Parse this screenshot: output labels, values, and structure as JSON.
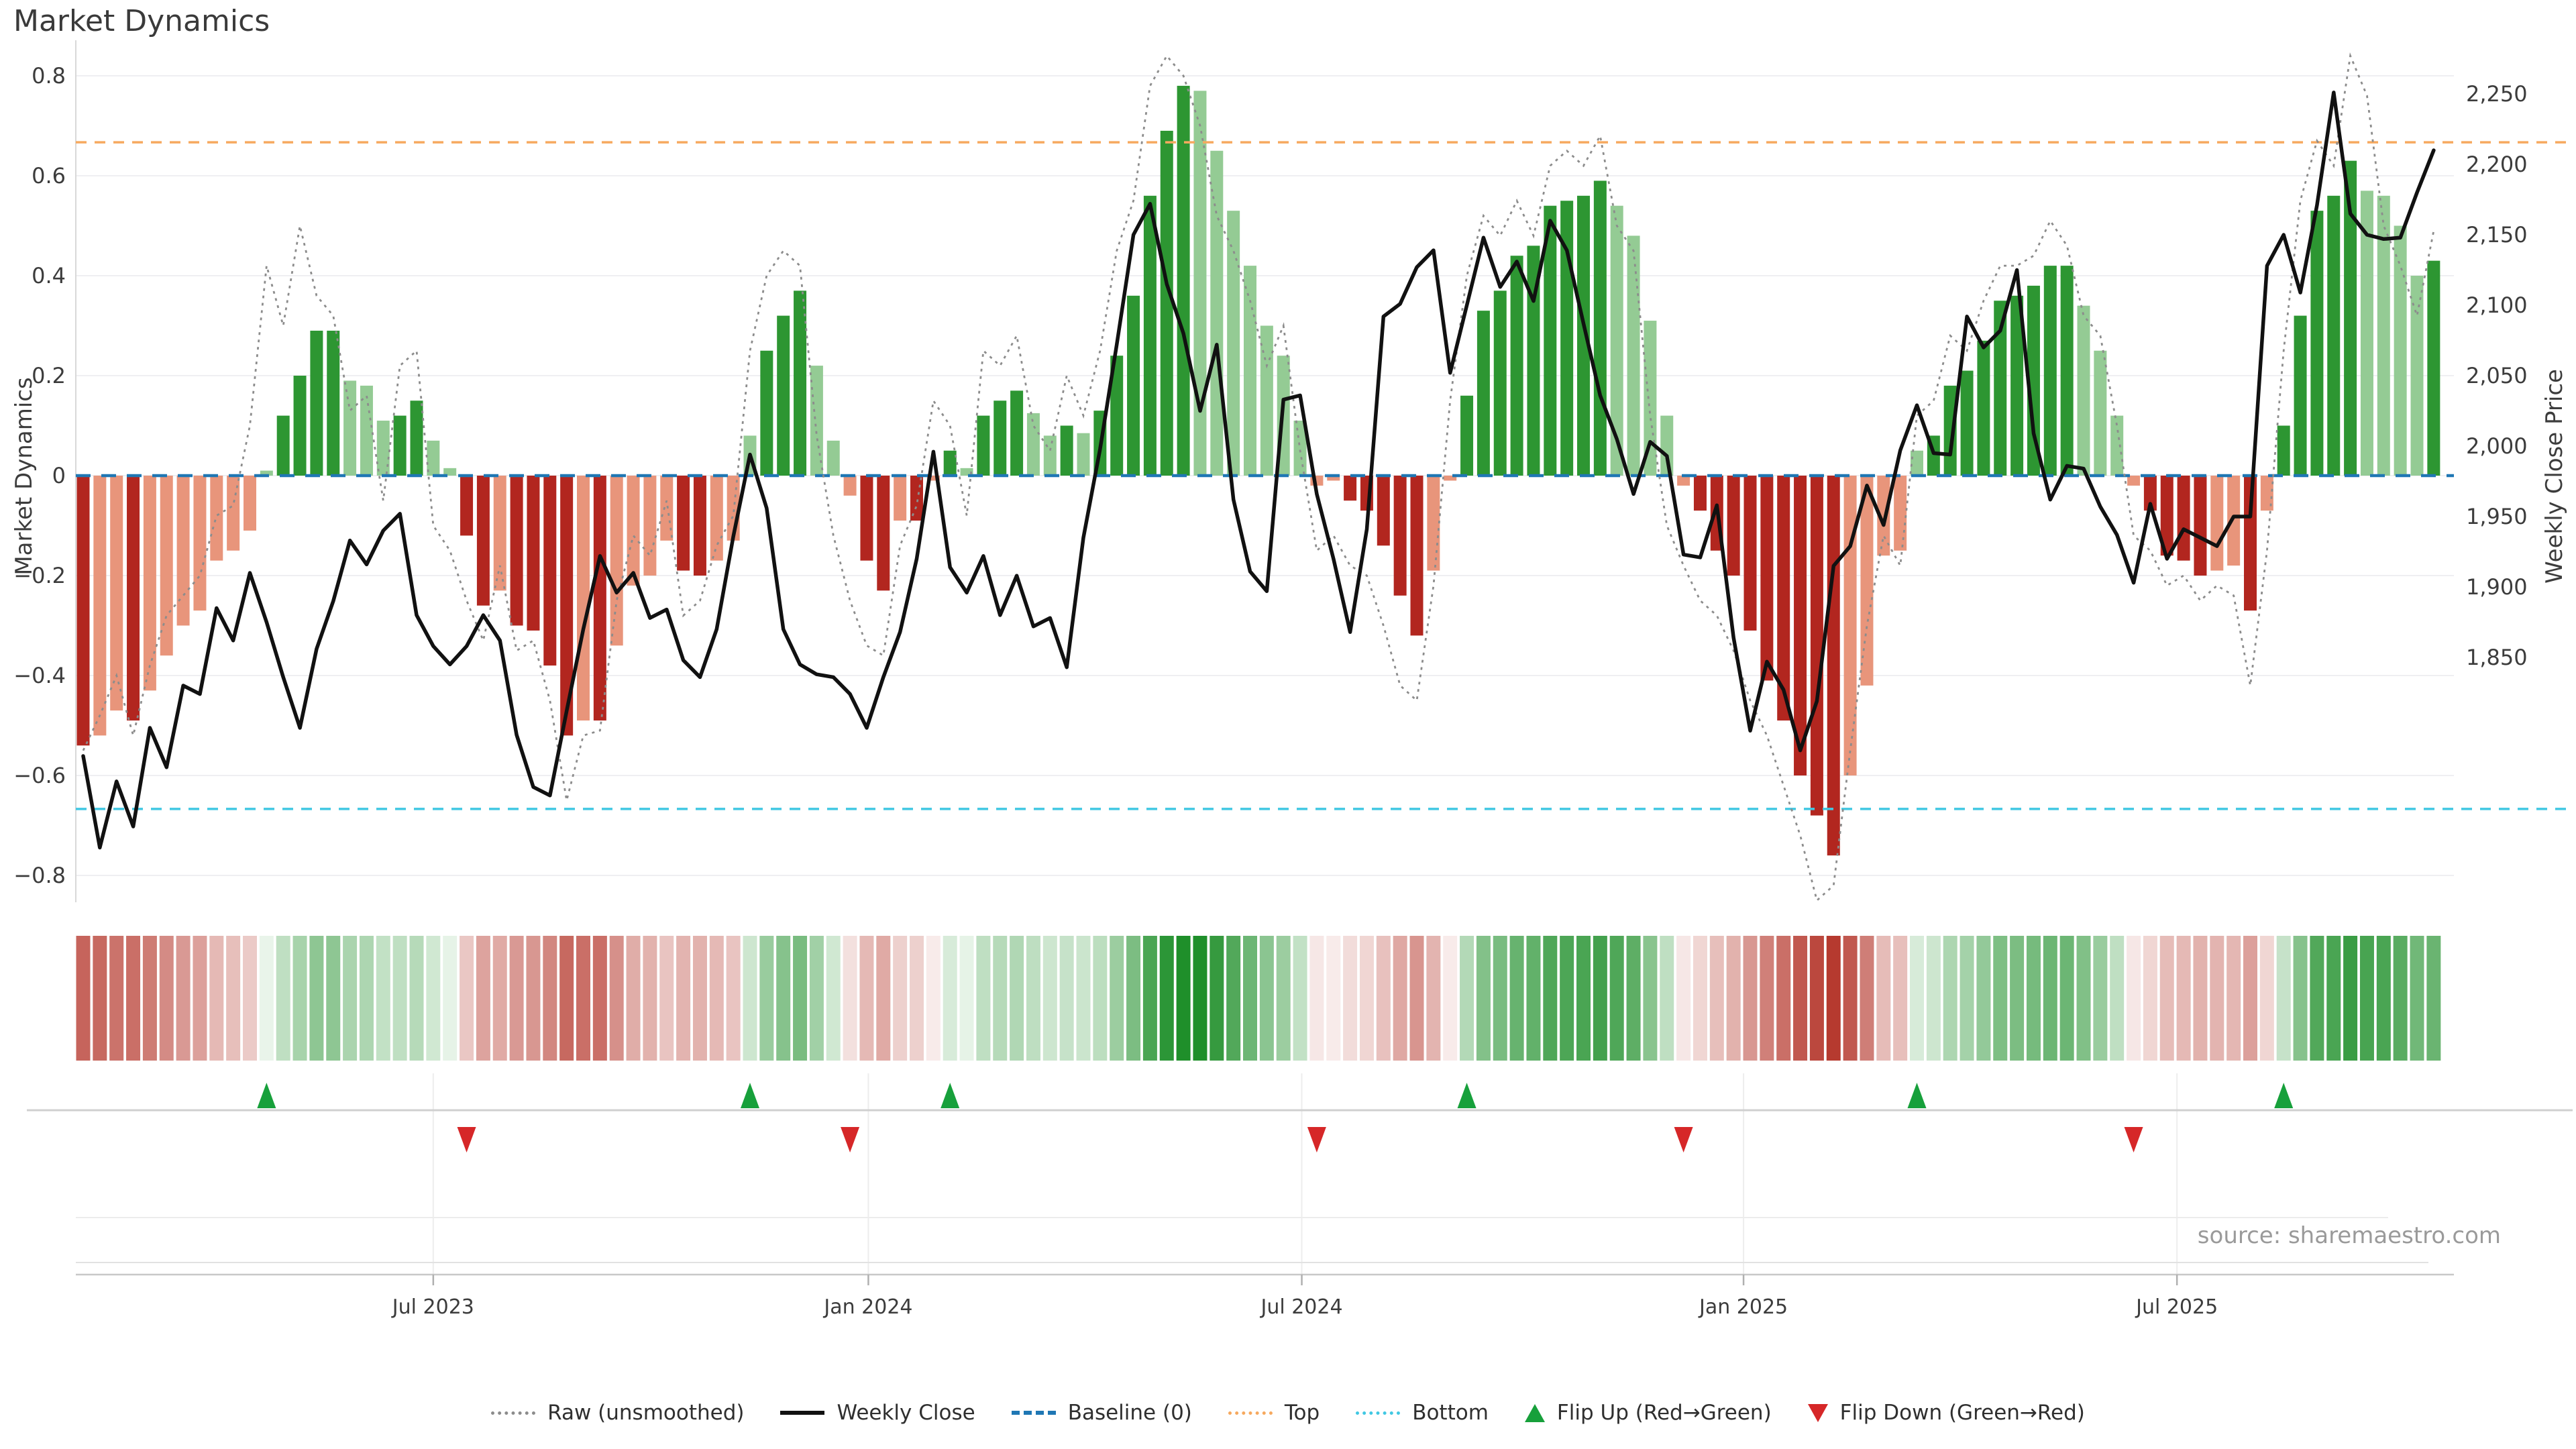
{
  "title": "Market Dynamics",
  "source": "source: sharemaestro.com",
  "axes": {
    "left_label": "Market Dynamics",
    "right_label": "Weekly Close Price",
    "left_ticks": [
      {
        "label": "0.8",
        "value": 0.8
      },
      {
        "label": "0.6",
        "value": 0.6
      },
      {
        "label": "0.4",
        "value": 0.4
      },
      {
        "label": "0.2",
        "value": 0.2
      },
      {
        "label": "0",
        "value": 0.0
      },
      {
        "label": "−0.2",
        "value": -0.2
      },
      {
        "label": "−0.4",
        "value": -0.4
      },
      {
        "label": "−0.6",
        "value": -0.6
      },
      {
        "label": "−0.8",
        "value": -0.8
      }
    ],
    "right_ticks": [
      {
        "label": "2,250",
        "value": 2250
      },
      {
        "label": "2,200",
        "value": 2200
      },
      {
        "label": "2,150",
        "value": 2150
      },
      {
        "label": "2,100",
        "value": 2100
      },
      {
        "label": "2,050",
        "value": 2050
      },
      {
        "label": "2,000",
        "value": 2000
      },
      {
        "label": "1,950",
        "value": 1950
      },
      {
        "label": "1,900",
        "value": 1900
      },
      {
        "label": "1,850",
        "value": 1850
      }
    ],
    "x_ticks": [
      {
        "label": "Jul 2023",
        "week": 21.0
      },
      {
        "label": "Jan 2024",
        "week": 47.1
      },
      {
        "label": "Jul 2024",
        "week": 73.1
      },
      {
        "label": "Jan 2025",
        "week": 99.6
      },
      {
        "label": "Jul 2025",
        "week": 125.6
      }
    ]
  },
  "legend": {
    "items": [
      {
        "label": "Raw (unsmoothed)",
        "type": "dotted-line",
        "color": "#8c8c8c"
      },
      {
        "label": "Weekly Close",
        "type": "solid-line",
        "color": "#111111"
      },
      {
        "label": "Baseline (0)",
        "type": "dashed-line",
        "color": "#1f77b4"
      },
      {
        "label": "Top",
        "type": "dotted-line",
        "color": "#f6a95f"
      },
      {
        "label": "Bottom",
        "type": "dotted-line",
        "color": "#41c8e3"
      },
      {
        "label": "Flip Up (Red→Green)",
        "type": "triangle-up",
        "color": "#17a03b"
      },
      {
        "label": "Flip Down (Green→Red)",
        "type": "triangle-down",
        "color": "#d62728"
      }
    ]
  },
  "colors": {
    "green_dark": "#2d9632",
    "green_light": "#94cb94",
    "red_dark": "#b2261f",
    "red_light": "#e8957b",
    "close": "#111111",
    "raw": "#8c8c8c",
    "baseline": "#1f77b4",
    "top": "#f6a95f",
    "bottom": "#41c8e3",
    "flip_up": "#17a03b",
    "flip_down": "#d62728",
    "grid": "#efeff2",
    "spine": "#d8d8d8",
    "axis_text": "#3c3c3c",
    "heat_pos": "#1f8f2a",
    "heat_neg": "#b63a2f"
  },
  "chart_data": {
    "type": "combo",
    "x_unit": "weeks",
    "n_points": 142,
    "left_ylim": [
      -0.8,
      0.8
    ],
    "right_tick_range": [
      1850,
      2250
    ],
    "baseline": 0,
    "top_threshold": 0.667,
    "bottom_threshold": -0.667,
    "flip_up_weeks": [
      11,
      40,
      52,
      83,
      110,
      132
    ],
    "flip_down_weeks": [
      23,
      46,
      74,
      96,
      123
    ],
    "heatmap_source": "dynamics",
    "series": [
      {
        "name": "Market Dynamics",
        "type": "bar",
        "axis": "left",
        "values": [
          -0.54,
          -0.52,
          -0.47,
          -0.49,
          -0.43,
          -0.36,
          -0.3,
          -0.27,
          -0.17,
          -0.15,
          -0.11,
          0.01,
          0.12,
          0.2,
          0.29,
          0.29,
          0.19,
          0.18,
          0.11,
          0.12,
          0.15,
          0.07,
          0.015,
          -0.12,
          -0.26,
          -0.23,
          -0.3,
          -0.31,
          -0.38,
          -0.52,
          -0.49,
          -0.49,
          -0.34,
          -0.22,
          -0.2,
          -0.13,
          -0.19,
          -0.2,
          -0.17,
          -0.13,
          0.08,
          0.25,
          0.32,
          0.37,
          0.22,
          0.07,
          -0.04,
          -0.17,
          -0.23,
          -0.09,
          -0.09,
          -0.01,
          0.05,
          0.015,
          0.12,
          0.15,
          0.17,
          0.125,
          0.08,
          0.1,
          0.085,
          0.13,
          0.24,
          0.36,
          0.56,
          0.69,
          0.78,
          0.77,
          0.65,
          0.53,
          0.42,
          0.3,
          0.24,
          0.11,
          -0.02,
          -0.01,
          -0.05,
          -0.07,
          -0.14,
          -0.24,
          -0.32,
          -0.19,
          -0.01,
          0.16,
          0.33,
          0.37,
          0.44,
          0.46,
          0.54,
          0.55,
          0.56,
          0.59,
          0.54,
          0.48,
          0.31,
          0.12,
          -0.02,
          -0.07,
          -0.15,
          -0.2,
          -0.31,
          -0.41,
          -0.49,
          -0.6,
          -0.68,
          -0.76,
          -0.6,
          -0.42,
          -0.16,
          -0.15,
          0.05,
          0.08,
          0.18,
          0.21,
          0.27,
          0.35,
          0.36,
          0.38,
          0.42,
          0.42,
          0.34,
          0.25,
          0.12,
          -0.02,
          -0.07,
          -0.16,
          -0.17,
          -0.2,
          -0.19,
          -0.18,
          -0.27,
          -0.07,
          0.1,
          0.32,
          0.53,
          0.56,
          0.63,
          0.57,
          0.56,
          0.5,
          0.4,
          0.43
        ]
      },
      {
        "name": "Raw (unsmoothed)",
        "type": "line",
        "style": "dotted",
        "axis": "left",
        "values": [
          -0.55,
          -0.48,
          -0.4,
          -0.52,
          -0.38,
          -0.28,
          -0.24,
          -0.2,
          -0.08,
          -0.06,
          0.1,
          0.42,
          0.3,
          0.5,
          0.36,
          0.32,
          0.13,
          0.16,
          -0.05,
          0.22,
          0.25,
          -0.1,
          -0.15,
          -0.25,
          -0.33,
          -0.18,
          -0.35,
          -0.33,
          -0.45,
          -0.65,
          -0.52,
          -0.51,
          -0.25,
          -0.12,
          -0.16,
          -0.05,
          -0.28,
          -0.25,
          -0.14,
          -0.08,
          0.25,
          0.4,
          0.45,
          0.42,
          0.08,
          -0.12,
          -0.25,
          -0.34,
          -0.36,
          -0.14,
          -0.06,
          0.15,
          0.1,
          -0.08,
          0.25,
          0.22,
          0.28,
          0.1,
          0.05,
          0.2,
          0.12,
          0.25,
          0.45,
          0.55,
          0.78,
          0.84,
          0.8,
          0.7,
          0.52,
          0.45,
          0.35,
          0.22,
          0.3,
          0.05,
          -0.15,
          -0.12,
          -0.18,
          -0.2,
          -0.3,
          -0.42,
          -0.45,
          -0.22,
          0.15,
          0.4,
          0.52,
          0.48,
          0.55,
          0.48,
          0.62,
          0.65,
          0.62,
          0.68,
          0.5,
          0.45,
          0.12,
          -0.1,
          -0.18,
          -0.25,
          -0.28,
          -0.35,
          -0.45,
          -0.52,
          -0.62,
          -0.72,
          -0.88,
          -0.82,
          -0.55,
          -0.3,
          -0.12,
          -0.18,
          0.12,
          0.15,
          0.28,
          0.25,
          0.35,
          0.42,
          0.42,
          0.44,
          0.51,
          0.46,
          0.32,
          0.28,
          0.1,
          -0.12,
          -0.15,
          -0.22,
          -0.2,
          -0.25,
          -0.22,
          -0.24,
          -0.42,
          -0.15,
          0.25,
          0.55,
          0.67,
          0.62,
          0.84,
          0.76,
          0.5,
          0.42,
          0.32,
          0.49
        ]
      },
      {
        "name": "Weekly Close",
        "type": "line",
        "style": "solid",
        "axis": "right",
        "values": [
          1780,
          1715,
          1762,
          1730,
          1800,
          1772,
          1830,
          1824,
          1885,
          1862,
          1910,
          1875,
          1836,
          1800,
          1856,
          1890,
          1933,
          1916,
          1940,
          1952,
          1880,
          1858,
          1845,
          1858,
          1880,
          1862,
          1795,
          1758,
          1752,
          1812,
          1870,
          1922,
          1896,
          1910,
          1878,
          1884,
          1848,
          1836,
          1870,
          1936,
          1994,
          1956,
          1870,
          1845,
          1838,
          1836,
          1824,
          1800,
          1836,
          1868,
          1920,
          1996,
          1914,
          1896,
          1922,
          1880,
          1908,
          1872,
          1878,
          1843,
          1935,
          1998,
          2072,
          2150,
          2172,
          2115,
          2080,
          2025,
          2072,
          1962,
          1911,
          1897,
          2033,
          2036,
          1966,
          1920,
          1868,
          1941,
          2092,
          2101,
          2127,
          2139,
          2052,
          2100,
          2148,
          2113,
          2131,
          2103,
          2160,
          2139,
          2087,
          2036,
          2005,
          1966,
          2003,
          1993,
          1923,
          1921,
          1958,
          1864,
          1798,
          1847,
          1827,
          1784,
          1819,
          1915,
          1929,
          1972,
          1944,
          1997,
          2029,
          1995,
          1994,
          2092,
          2070,
          2082,
          2125,
          2009,
          1962,
          1986,
          1984,
          1957,
          1937,
          1903,
          1959,
          1920,
          1941,
          1935,
          1929,
          1950,
          1950,
          2128,
          2150,
          2109,
          2171,
          2251,
          2165,
          2150,
          2147,
          2148,
          2180,
          2210
        ]
      }
    ]
  }
}
